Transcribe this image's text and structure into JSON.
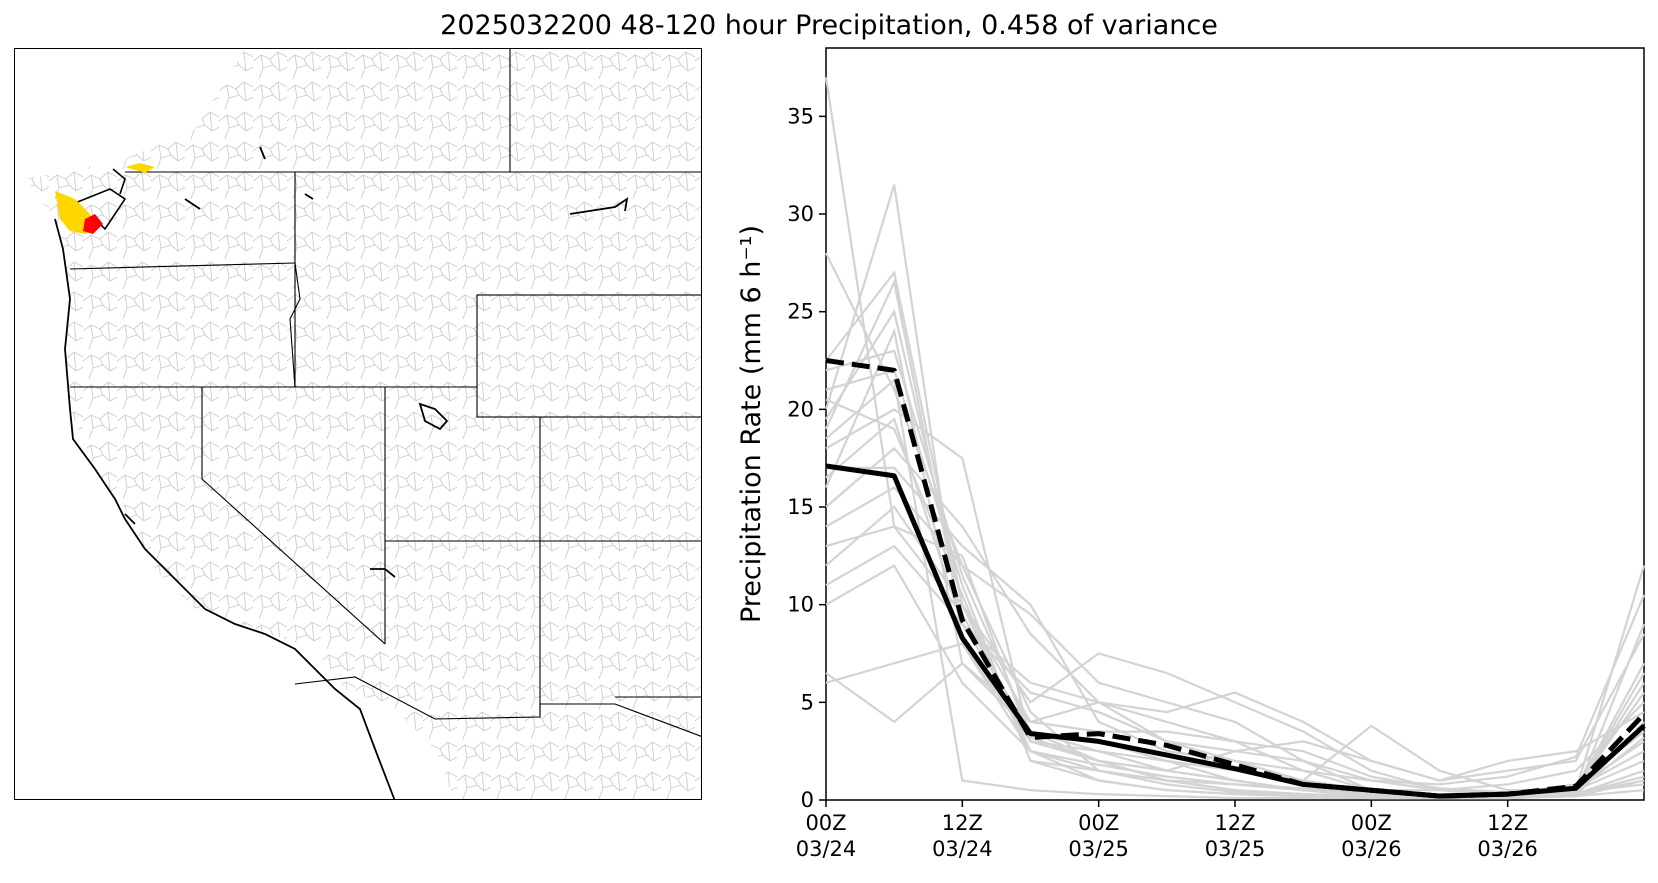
{
  "title": "2025032200 48-120 hour Precipitation, 0.458 of variance",
  "map": {
    "highlight_colors": {
      "region_a": "#ffd700",
      "region_b": "#ff0000"
    },
    "basin_line_color": "#c8c8c8",
    "boundary_color": "#000000"
  },
  "chart_data": {
    "type": "line",
    "ylabel": "Precipitation Rate (mm 6 h⁻¹)",
    "ylim": [
      0,
      38.5
    ],
    "yticks": [
      0,
      5,
      10,
      15,
      20,
      25,
      30,
      35
    ],
    "x": [
      0,
      6,
      12,
      18,
      24,
      30,
      36,
      42,
      48,
      54,
      60,
      66,
      72
    ],
    "xlim": [
      0,
      72
    ],
    "xticks": [
      {
        "x": 0,
        "line1": "00Z",
        "line2": "03/24"
      },
      {
        "x": 12,
        "line1": "12Z",
        "line2": "03/24"
      },
      {
        "x": 24,
        "line1": "00Z",
        "line2": "03/25"
      },
      {
        "x": 36,
        "line1": "12Z",
        "line2": "03/25"
      },
      {
        "x": 48,
        "line1": "00Z",
        "line2": "03/26"
      },
      {
        "x": 60,
        "line1": "12Z",
        "line2": "03/26"
      }
    ],
    "grid": false,
    "member_color": "#d3d3d3",
    "mean_color": "#000000",
    "members": [
      [
        37.0,
        14.0,
        9.5,
        3.2,
        2.0,
        1.0,
        0.5,
        0.3,
        0.1,
        0.1,
        0.1,
        0.2,
        1.0
      ],
      [
        28.0,
        21.0,
        12.0,
        4.5,
        1.5,
        0.8,
        0.4,
        0.2,
        0.1,
        0.2,
        0.3,
        0.5,
        12.0
      ],
      [
        20.0,
        31.5,
        8.0,
        3.0,
        2.0,
        1.5,
        1.0,
        0.5,
        0.2,
        0.1,
        0.2,
        0.6,
        3.0
      ],
      [
        22.5,
        27.0,
        10.0,
        2.5,
        1.0,
        0.5,
        0.3,
        0.2,
        0.1,
        0.1,
        0.1,
        0.3,
        9.0
      ],
      [
        19.0,
        26.5,
        9.0,
        3.5,
        3.0,
        2.0,
        1.0,
        0.5,
        0.2,
        0.3,
        0.2,
        0.5,
        6.0
      ],
      [
        16.0,
        24.0,
        7.0,
        4.0,
        5.0,
        4.0,
        3.0,
        1.5,
        0.5,
        0.5,
        0.8,
        1.5,
        5.0
      ],
      [
        21.0,
        22.0,
        11.0,
        2.0,
        1.0,
        0.5,
        0.3,
        0.2,
        0.1,
        0.1,
        0.1,
        0.2,
        4.0
      ],
      [
        18.0,
        20.0,
        17.5,
        3.0,
        2.0,
        1.0,
        0.5,
        0.2,
        0.1,
        0.1,
        0.2,
        0.5,
        2.0
      ],
      [
        15.0,
        18.0,
        14.0,
        8.5,
        5.0,
        3.0,
        2.0,
        1.0,
        0.5,
        0.2,
        0.3,
        0.8,
        3.5
      ],
      [
        17.0,
        17.0,
        13.0,
        10.0,
        4.0,
        2.5,
        2.0,
        1.5,
        1.0,
        0.5,
        0.3,
        0.5,
        7.0
      ],
      [
        14.0,
        16.0,
        12.0,
        9.5,
        6.0,
        5.0,
        4.0,
        2.0,
        0.5,
        0.2,
        0.2,
        0.3,
        1.5
      ],
      [
        12.0,
        15.0,
        10.0,
        5.0,
        7.5,
        6.5,
        5.0,
        3.5,
        1.5,
        0.5,
        0.2,
        0.3,
        1.0
      ],
      [
        11.0,
        13.0,
        9.0,
        6.0,
        5.0,
        4.5,
        5.5,
        4.0,
        2.0,
        1.0,
        1.5,
        2.0,
        8.5
      ],
      [
        13.0,
        14.0,
        12.5,
        3.0,
        2.5,
        2.0,
        1.5,
        1.0,
        3.8,
        1.5,
        0.5,
        0.5,
        6.5
      ],
      [
        6.5,
        4.0,
        7.0,
        3.5,
        2.0,
        1.5,
        2.5,
        3.0,
        2.0,
        1.0,
        2.0,
        2.5,
        4.5
      ],
      [
        6.0,
        7.0,
        8.0,
        2.5,
        1.5,
        1.0,
        0.8,
        0.5,
        0.3,
        0.2,
        0.3,
        0.6,
        2.5
      ],
      [
        20.5,
        19.0,
        10.5,
        2.0,
        1.5,
        1.0,
        0.5,
        0.3,
        0.2,
        0.1,
        0.1,
        0.3,
        1.2
      ],
      [
        22.0,
        23.0,
        11.5,
        3.5,
        2.5,
        1.5,
        1.0,
        0.5,
        0.3,
        0.2,
        0.2,
        0.4,
        3.2
      ],
      [
        18.5,
        21.5,
        1.0,
        0.5,
        0.3,
        0.2,
        0.1,
        0.1,
        0.1,
        0.1,
        0.1,
        0.2,
        0.5
      ],
      [
        16.5,
        19.5,
        9.0,
        5.5,
        4.5,
        3.0,
        2.5,
        2.0,
        1.0,
        0.8,
        1.2,
        2.2,
        10.5
      ],
      [
        19.5,
        25.0,
        10.0,
        4.0,
        3.5,
        3.5,
        3.0,
        2.5,
        1.2,
        0.6,
        0.4,
        0.6,
        5.5
      ],
      [
        10.0,
        12.0,
        6.0,
        2.5,
        1.8,
        1.2,
        0.8,
        0.6,
        0.4,
        0.3,
        0.3,
        0.4,
        0.8
      ]
    ],
    "series": [
      {
        "style": "solid",
        "values": [
          17.1,
          16.6,
          8.3,
          3.4,
          3.0,
          2.3,
          1.6,
          0.8,
          0.5,
          0.2,
          0.3,
          0.6,
          3.8
        ]
      },
      {
        "style": "dashed",
        "values": [
          22.5,
          22.0,
          9.2,
          3.2,
          3.4,
          2.8,
          1.8,
          0.8,
          0.5,
          0.2,
          0.3,
          0.7,
          4.4
        ]
      }
    ]
  }
}
